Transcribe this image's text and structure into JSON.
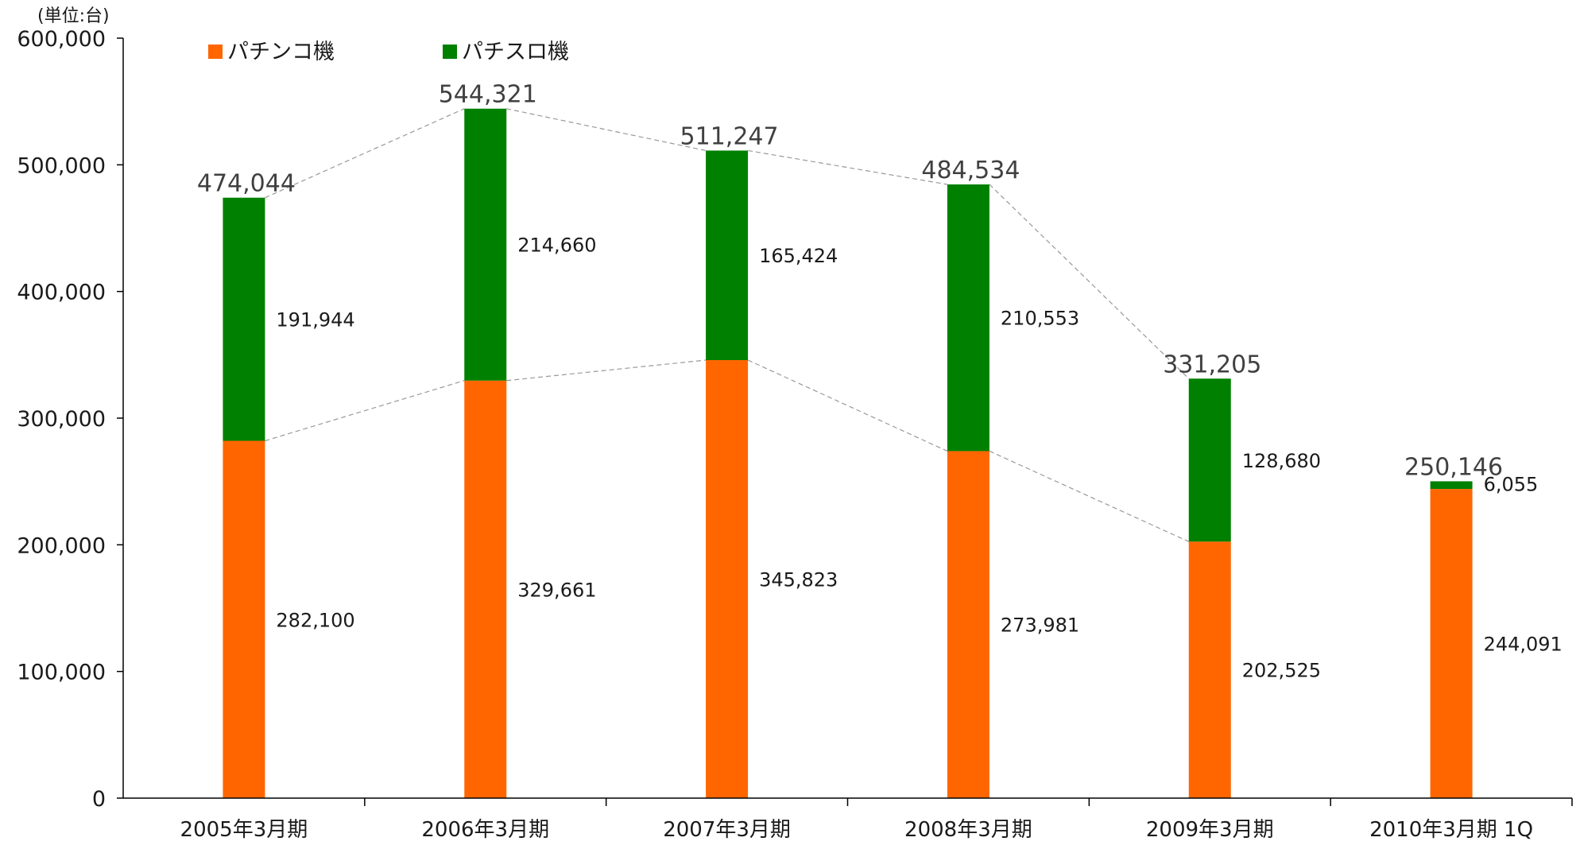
{
  "chart_data": {
    "type": "bar",
    "stacked": true,
    "unit_label": "(単位:台)",
    "categories": [
      "2005年3月期",
      "2006年3月期",
      "2007年3月期",
      "2008年3月期",
      "2009年3月期",
      "2010年3月期 1Q"
    ],
    "series": [
      {
        "name": "パチンコ機",
        "color": "#ff6600",
        "values": [
          282100,
          329661,
          345823,
          273981,
          202525,
          244091
        ],
        "labels": [
          "282,100",
          "329,661",
          "345,823",
          "273,981",
          "202,525",
          "244,091"
        ]
      },
      {
        "name": "パチスロ機",
        "color": "#008000",
        "values": [
          191944,
          214660,
          165424,
          210553,
          128680,
          6055
        ],
        "labels": [
          "191,944",
          "214,660",
          "165,424",
          "210,553",
          "128,680",
          "6,055"
        ]
      }
    ],
    "totals": [
      474044,
      544321,
      511247,
      484534,
      331205,
      250146
    ],
    "total_labels": [
      "474,044",
      "544,321",
      "511,247",
      "484,534",
      "331,205",
      "250,146"
    ],
    "ylim": [
      0,
      600000
    ],
    "yticks": [
      0,
      100000,
      200000,
      300000,
      400000,
      500000,
      600000
    ],
    "ytick_labels": [
      "0",
      "100,000",
      "200,000",
      "300,000",
      "400,000",
      "500,000",
      "600,000"
    ],
    "grid": false,
    "legend_position": "top-left",
    "connector_lines": "dashed gray between segment tops (first five periods)"
  }
}
